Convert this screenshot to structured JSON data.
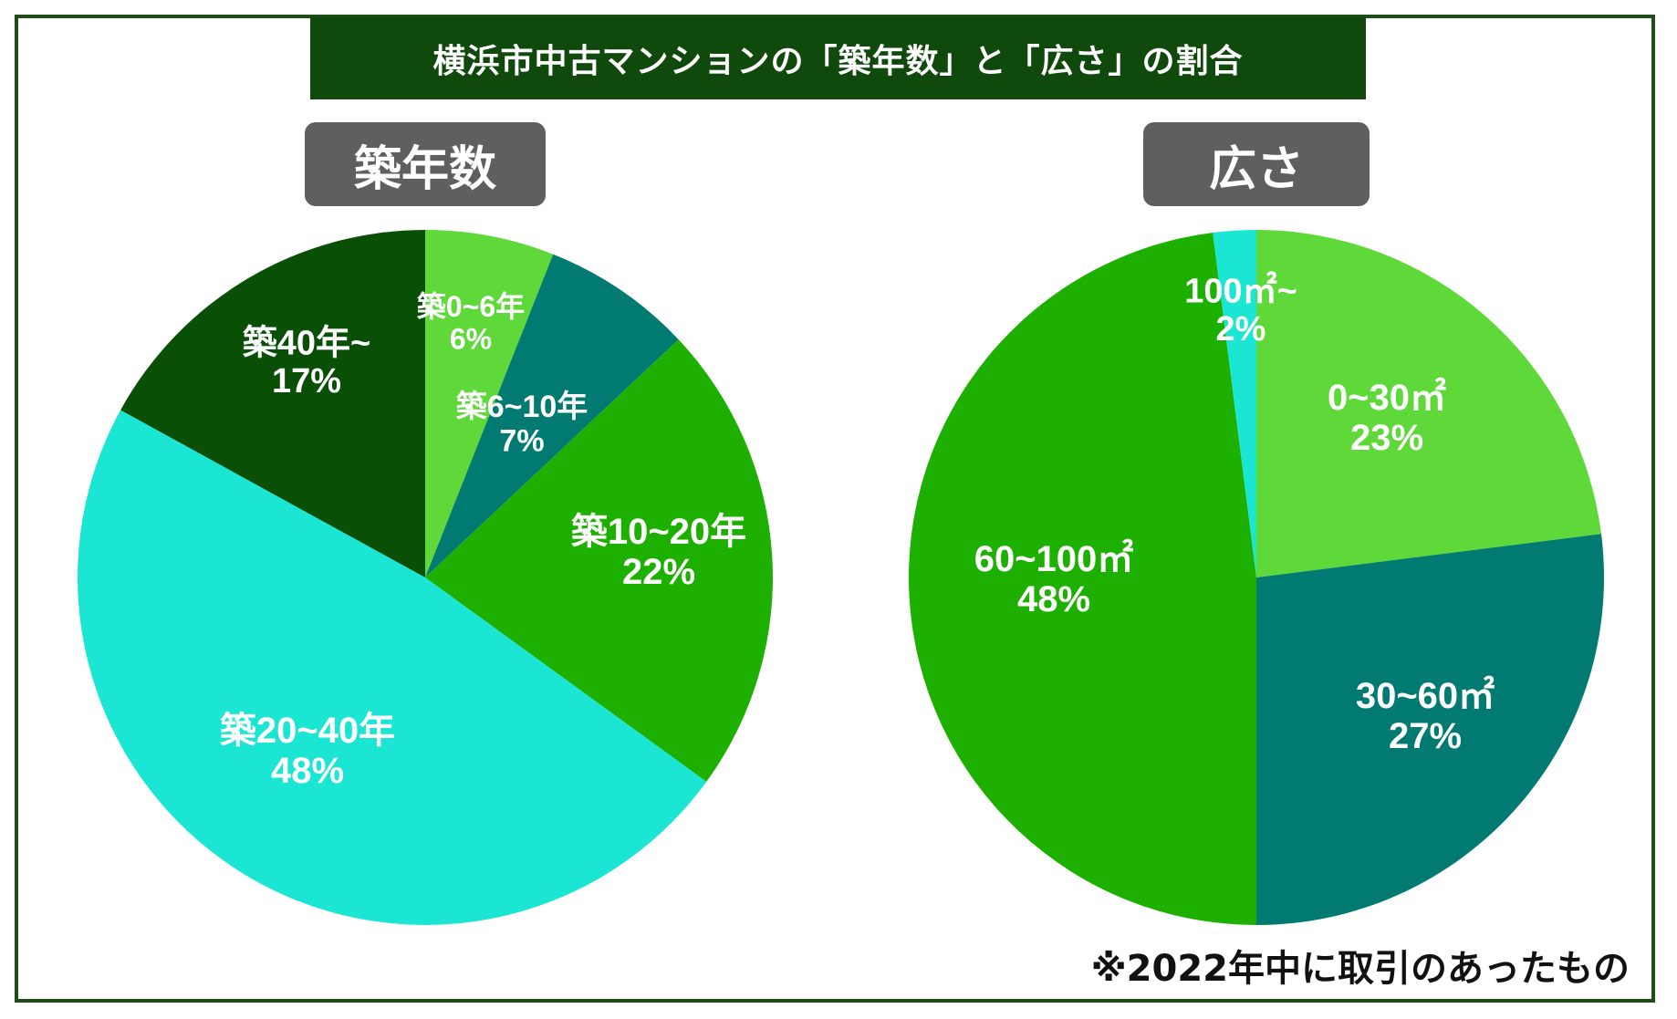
{
  "title": "横浜市中古マンションの「築年数」と「広さ」の割合",
  "footnote": "※2022年中に取引のあったもの",
  "colors": {
    "frame": "#1f4d18",
    "title_bg": "#0f4a0c",
    "pill_bg": "#5f5f5f",
    "light_green": "#5fd83a",
    "teal": "#017a72",
    "green": "#1eb001",
    "cyan": "#1ae6d3",
    "dark_green": "#0a4f06"
  },
  "chart_data": [
    {
      "type": "pie",
      "title": "築年数",
      "labels": [
        "築0~6年",
        "築6~10年",
        "築10~20年",
        "築20~40年",
        "築40年~"
      ],
      "values": [
        6,
        7,
        22,
        48,
        17
      ],
      "value_labels": [
        "6%",
        "7%",
        "22%",
        "48%",
        "17%"
      ],
      "colors": [
        "#5fd83a",
        "#017a72",
        "#1eb001",
        "#1ae6d3",
        "#0a4f06"
      ]
    },
    {
      "type": "pie",
      "title": "広さ",
      "labels": [
        "0~30㎡",
        "30~60㎡",
        "60~100㎡",
        "100㎡~"
      ],
      "values": [
        23,
        27,
        48,
        2
      ],
      "value_labels": [
        "23%",
        "27%",
        "48%",
        "2%"
      ],
      "colors": [
        "#5fd83a",
        "#017a72",
        "#1eb001",
        "#1ae6d3"
      ]
    }
  ]
}
